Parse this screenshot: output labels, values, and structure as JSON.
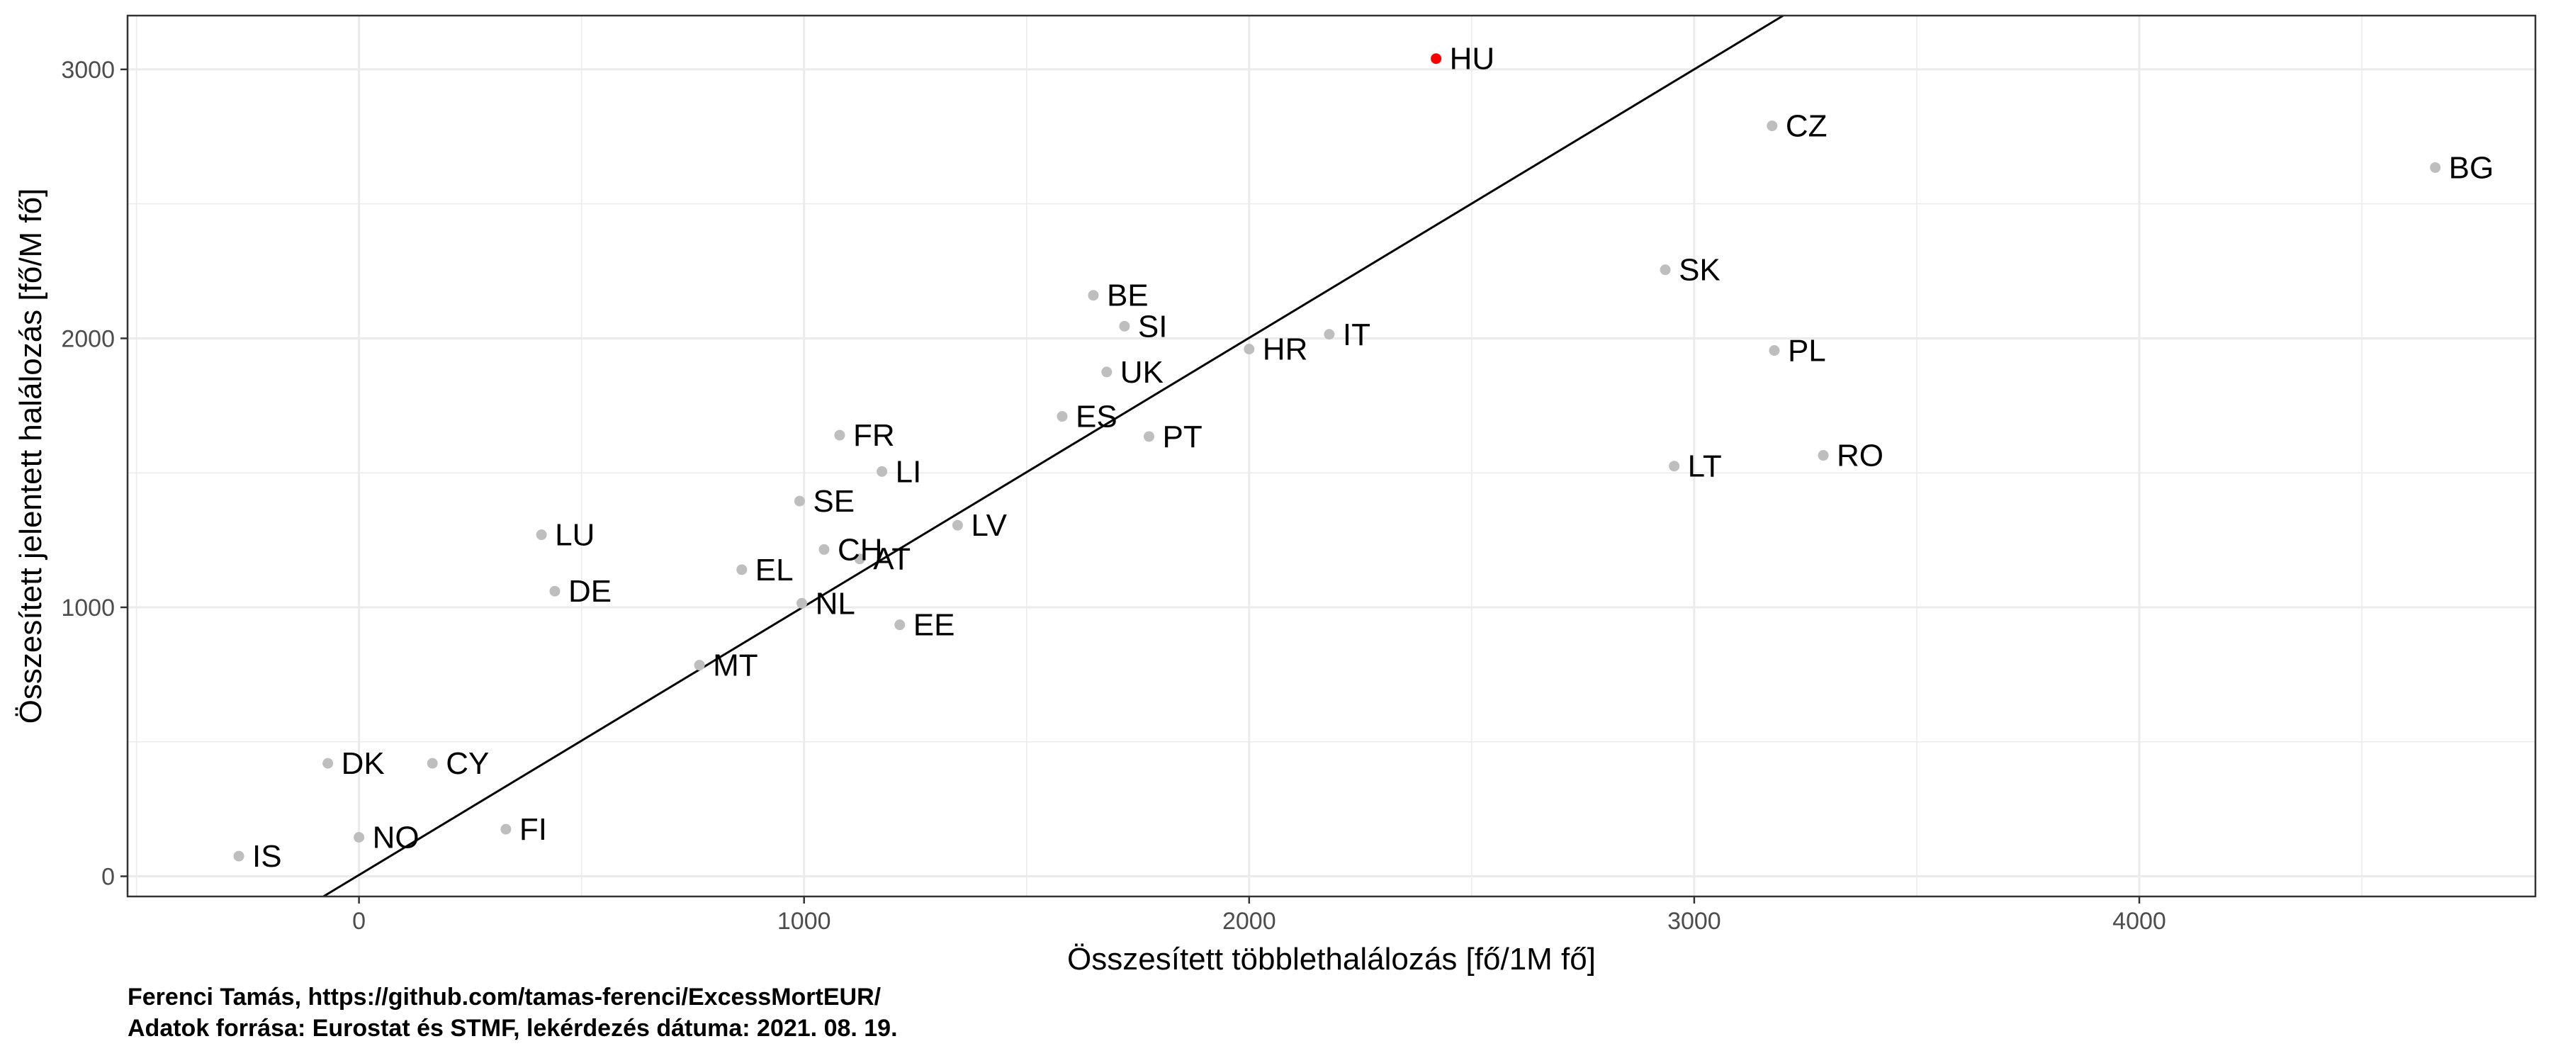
{
  "chart_data": {
    "type": "scatter",
    "xlabel": "Összesített többlethalálozás [fő/1M fő]",
    "ylabel": "Összesített jelentett halálozás [fő/M fő]",
    "xlim": [
      -520,
      4890
    ],
    "ylim": [
      -75,
      3200
    ],
    "x_ticks": [
      0,
      1000,
      2000,
      3000,
      4000
    ],
    "y_ticks": [
      0,
      1000,
      2000,
      3000
    ],
    "grid": true,
    "regression_line": {
      "from": [
        -80,
        -75
      ],
      "to": [
        3200,
        3200
      ]
    },
    "colors": {
      "point": "#bebebe",
      "highlight": "#ff0000",
      "line": "#000000",
      "grid": "#ebebeb",
      "frame": "#333333"
    },
    "points": [
      {
        "label": "HU",
        "x": 2420,
        "y": 3040,
        "highlight": true
      },
      {
        "label": "CZ",
        "x": 3175,
        "y": 2790
      },
      {
        "label": "BG",
        "x": 4665,
        "y": 2635
      },
      {
        "label": "SK",
        "x": 2935,
        "y": 2255
      },
      {
        "label": "BE",
        "x": 1650,
        "y": 2160
      },
      {
        "label": "SI",
        "x": 1720,
        "y": 2045
      },
      {
        "label": "IT",
        "x": 2180,
        "y": 2015
      },
      {
        "label": "HR",
        "x": 2000,
        "y": 1960
      },
      {
        "label": "PL",
        "x": 3180,
        "y": 1955
      },
      {
        "label": "UK",
        "x": 1680,
        "y": 1875
      },
      {
        "label": "ES",
        "x": 1580,
        "y": 1710
      },
      {
        "label": "FR",
        "x": 1080,
        "y": 1640
      },
      {
        "label": "PT",
        "x": 1775,
        "y": 1635
      },
      {
        "label": "RO",
        "x": 3290,
        "y": 1565
      },
      {
        "label": "LT",
        "x": 2955,
        "y": 1525
      },
      {
        "label": "LI",
        "x": 1175,
        "y": 1505
      },
      {
        "label": "SE",
        "x": 990,
        "y": 1395
      },
      {
        "label": "LV",
        "x": 1345,
        "y": 1305
      },
      {
        "label": "LU",
        "x": 410,
        "y": 1270
      },
      {
        "label": "CH",
        "x": 1045,
        "y": 1215
      },
      {
        "label": "AT",
        "x": 1125,
        "y": 1180
      },
      {
        "label": "EL",
        "x": 860,
        "y": 1140
      },
      {
        "label": "DE",
        "x": 440,
        "y": 1060
      },
      {
        "label": "NL",
        "x": 995,
        "y": 1015
      },
      {
        "label": "EE",
        "x": 1215,
        "y": 935
      },
      {
        "label": "MT",
        "x": 765,
        "y": 785
      },
      {
        "label": "DK",
        "x": -70,
        "y": 420
      },
      {
        "label": "CY",
        "x": 165,
        "y": 420
      },
      {
        "label": "FI",
        "x": 330,
        "y": 175
      },
      {
        "label": "NO",
        "x": 0,
        "y": 145
      },
      {
        "label": "IS",
        "x": -270,
        "y": 75
      }
    ]
  },
  "caption": {
    "line1": "Ferenci Tamás, https://github.com/tamas-ferenci/ExcessMortEUR/",
    "line2": "Adatok forrása: Eurostat és STMF, lekérdezés dátuma: 2021. 08. 19."
  }
}
